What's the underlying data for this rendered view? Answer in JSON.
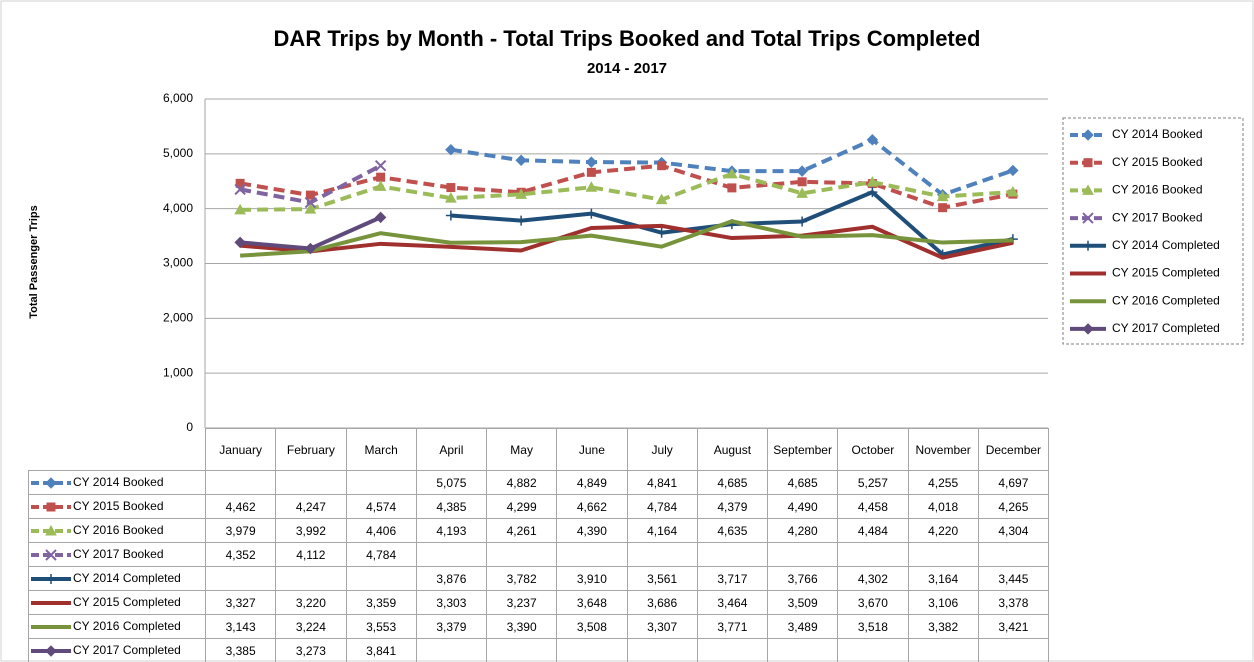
{
  "chart_data": {
    "type": "line",
    "title": "DAR Trips by Month - Total Trips Booked and Total Trips Completed",
    "subtitle": "2014 - 2017",
    "y_label": "Total Passenger Trips",
    "categories": [
      "January",
      "February",
      "March",
      "April",
      "May",
      "June",
      "July",
      "August",
      "September",
      "October",
      "November",
      "December"
    ],
    "ylim": [
      0,
      6000
    ],
    "yticks": [
      0,
      {
        "value": 1000,
        "label": "1,000"
      },
      {
        "value": 2000,
        "label": "2,000"
      },
      {
        "value": 3000,
        "label": "3,000"
      },
      {
        "value": 4000,
        "label": "4,000"
      },
      {
        "value": 5000,
        "label": "5,000"
      },
      {
        "value": 6000,
        "label": "6,000"
      }
    ],
    "grid": true,
    "legend": "right",
    "series": [
      {
        "name": "CY 2014 Booked",
        "color": "#4f81bd",
        "dashed": true,
        "marker": "diamond",
        "values": [
          null,
          null,
          null,
          5075,
          4882,
          4849,
          4841,
          4685,
          4685,
          5257,
          4255,
          4697
        ],
        "value_labels": [
          null,
          null,
          null,
          "5,075",
          "4,882",
          "4,849",
          "4,841",
          "4,685",
          "4,685",
          "5,257",
          "4,255",
          "4,697"
        ]
      },
      {
        "name": "CY 2015 Booked",
        "color": "#c0504d",
        "dashed": true,
        "marker": "square",
        "values": [
          4462,
          4247,
          4574,
          4385,
          4299,
          4662,
          4784,
          4379,
          4490,
          4458,
          4018,
          4265
        ],
        "value_labels": [
          "4,462",
          "4,247",
          "4,574",
          "4,385",
          "4,299",
          "4,662",
          "4,784",
          "4,379",
          "4,490",
          "4,458",
          "4,018",
          "4,265"
        ]
      },
      {
        "name": "CY 2016 Booked",
        "color": "#9bbb59",
        "dashed": true,
        "marker": "triangle",
        "values": [
          3979,
          3992,
          4406,
          4193,
          4261,
          4390,
          4164,
          4635,
          4280,
          4484,
          4220,
          4304
        ],
        "value_labels": [
          "3,979",
          "3,992",
          "4,406",
          "4,193",
          "4,261",
          "4,390",
          "4,164",
          "4,635",
          "4,280",
          "4,484",
          "4,220",
          "4,304"
        ]
      },
      {
        "name": "CY 2017 Booked",
        "color": "#8064a2",
        "dashed": true,
        "marker": "x",
        "values": [
          4352,
          4112,
          4784,
          null,
          null,
          null,
          null,
          null,
          null,
          null,
          null,
          null
        ],
        "value_labels": [
          "4,352",
          "4,112",
          "4,784",
          null,
          null,
          null,
          null,
          null,
          null,
          null,
          null,
          null
        ]
      },
      {
        "name": "CY 2014 Completed",
        "color": "#1f4e79",
        "dashed": false,
        "marker": "plus",
        "values": [
          null,
          null,
          null,
          3876,
          3782,
          3910,
          3561,
          3717,
          3766,
          4302,
          3164,
          3445
        ],
        "value_labels": [
          null,
          null,
          null,
          "3,876",
          "3,782",
          "3,910",
          "3,561",
          "3,717",
          "3,766",
          "4,302",
          "3,164",
          "3,445"
        ]
      },
      {
        "name": "CY 2015 Completed",
        "color": "#a0302d",
        "dashed": false,
        "marker": "none",
        "values": [
          3327,
          3220,
          3359,
          3303,
          3237,
          3648,
          3686,
          3464,
          3509,
          3670,
          3106,
          3378
        ],
        "value_labels": [
          "3,327",
          "3,220",
          "3,359",
          "3,303",
          "3,237",
          "3,648",
          "3,686",
          "3,464",
          "3,509",
          "3,670",
          "3,106",
          "3,378"
        ]
      },
      {
        "name": "CY 2016 Completed",
        "color": "#77933c",
        "dashed": false,
        "marker": "none",
        "values": [
          3143,
          3224,
          3553,
          3379,
          3390,
          3508,
          3307,
          3771,
          3489,
          3518,
          3382,
          3421
        ],
        "value_labels": [
          "3,143",
          "3,224",
          "3,553",
          "3,379",
          "3,390",
          "3,508",
          "3,307",
          "3,771",
          "3,489",
          "3,518",
          "3,382",
          "3,421"
        ]
      },
      {
        "name": "CY 2017 Completed",
        "color": "#604a7b",
        "dashed": false,
        "marker": "diamond",
        "values": [
          3385,
          3273,
          3841,
          null,
          null,
          null,
          null,
          null,
          null,
          null,
          null,
          null
        ],
        "value_labels": [
          "3,385",
          "3,273",
          "3,841",
          null,
          null,
          null,
          null,
          null,
          null,
          null,
          null,
          null
        ]
      }
    ]
  }
}
